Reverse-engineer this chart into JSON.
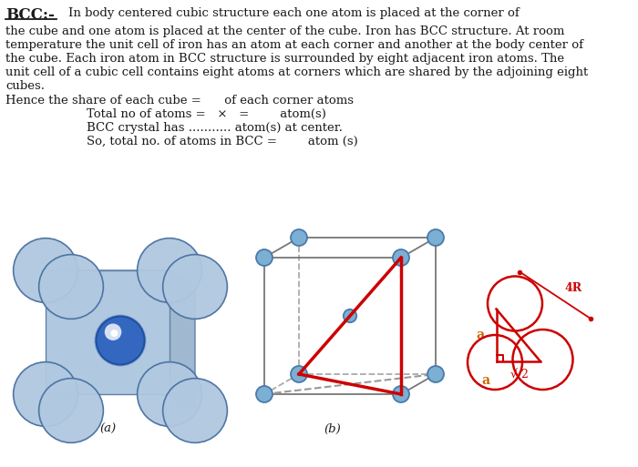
{
  "background_color": "#ffffff",
  "text_color": "#1a1a1a",
  "red_color": "#cc0000",
  "orange_label_color": "#cc6600",
  "atom_color": "#7bafd4",
  "atom_edge_color": "#4a7aaa",
  "cube_line_color": "#777777",
  "cube_dash_color": "#aaaaaa",
  "title": "BCC:-",
  "para1": "In body centered cubic structure each one atom is placed at the corner of",
  "para2_lines": [
    "the cube and one atom is placed at the center of the cube. Iron has BCC structure. At room",
    "temperature the unit cell of iron has an atom at each corner and another at the body center of",
    "the cube. Each iron atom in BCC structure is surrounded by eight adjacent iron atoms. The",
    "unit cell of a cubic cell contains eight atoms at corners which are shared by the adjoining eight",
    "cubes."
  ],
  "hence_line": "Hence the share of each cube =      of each corner atoms",
  "total_line": "Total no of atoms =   ×   =        atom(s)",
  "bcc_line": "BCC crystal has ........... atom(s) at center.",
  "so_line": "So, total no. of atoms in BCC =        atom (s)",
  "label_a": "(a)",
  "label_b": "(b)"
}
